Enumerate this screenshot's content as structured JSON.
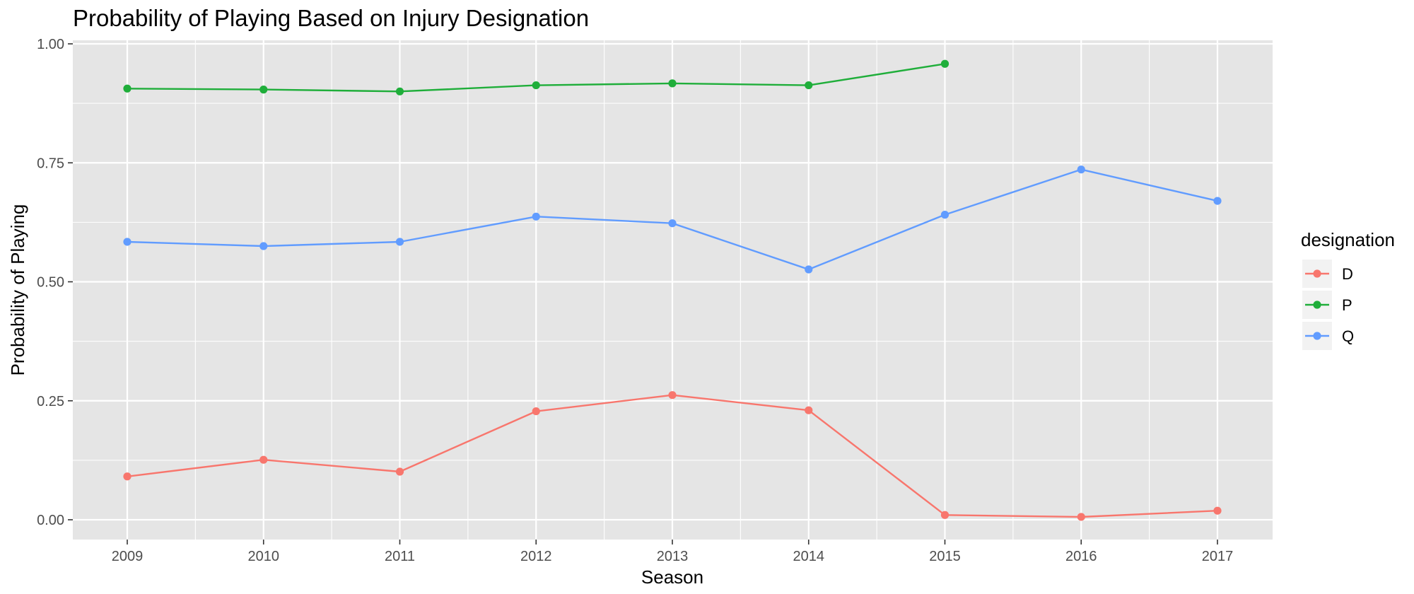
{
  "chart_data": {
    "type": "line",
    "title": "Probability of Playing Based on Injury Designation",
    "xlabel": "Season",
    "ylabel": "Probability of Playing",
    "x": [
      "2009",
      "2010",
      "2011",
      "2012",
      "2013",
      "2014",
      "2015",
      "2016",
      "2017"
    ],
    "ylim": [
      -0.08,
      1.005
    ],
    "yticks": [
      0.0,
      0.25,
      0.5,
      0.75,
      1.0
    ],
    "ytick_labels": [
      "0.00",
      "0.25",
      "0.50",
      "0.75",
      "1.00"
    ],
    "grid": true,
    "panel_background": "#e5e5e5",
    "legend": {
      "title": "designation",
      "position": "right"
    },
    "series": [
      {
        "name": "D",
        "color": "#f8766d",
        "values": [
          0.091,
          0.126,
          0.101,
          0.228,
          0.262,
          0.23,
          0.01,
          0.006,
          0.019
        ]
      },
      {
        "name": "P",
        "color": "#1fae3a",
        "values": [
          0.906,
          0.904,
          0.9,
          0.913,
          0.917,
          0.913,
          0.958,
          null,
          null
        ]
      },
      {
        "name": "Q",
        "color": "#619cff",
        "values": [
          0.584,
          0.575,
          0.584,
          0.637,
          0.623,
          0.526,
          0.641,
          0.736,
          0.67
        ]
      }
    ]
  }
}
